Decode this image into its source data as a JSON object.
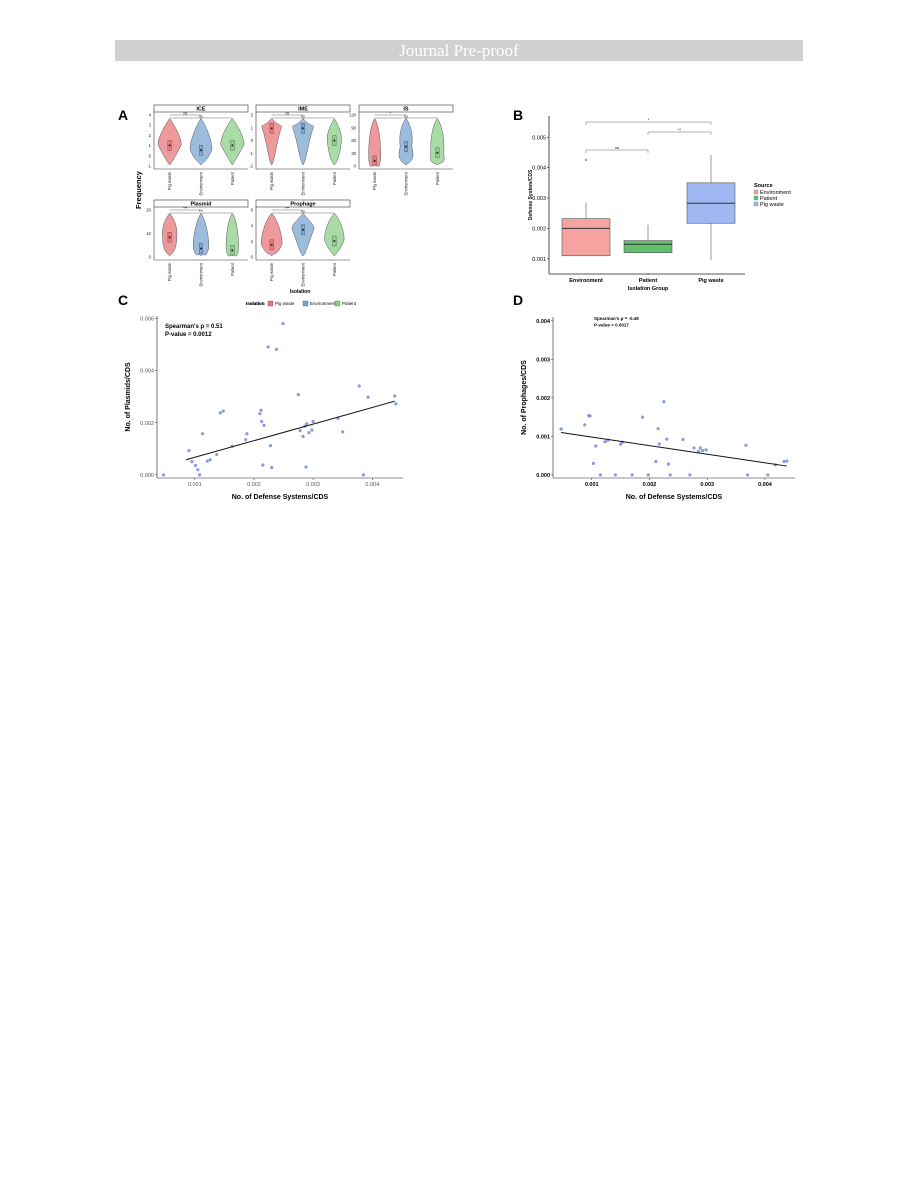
{
  "header": {
    "banner": "Journal Pre-proof"
  },
  "panels": {
    "a": "A",
    "b": "B",
    "c": "C",
    "d": "D"
  },
  "colors": {
    "pig": "#e8777a",
    "env": "#7aa6d2",
    "patient": "#8ccf8a",
    "box_env": "#f4a3a0",
    "box_patient": "#62bf6e",
    "box_pig": "#9fb8f2",
    "point": "#6b7fe0"
  },
  "chart_data": [
    {
      "type": "violin",
      "panel": "A",
      "ylabel": "Frequency",
      "xlabel": "Isolation",
      "categories": [
        "Pig waste",
        "Environment",
        "Patient"
      ],
      "facets": [
        {
          "title": "ICE",
          "yticks": [
            "4",
            "3",
            "2",
            "1",
            "0",
            "-1"
          ],
          "ylim": [
            -1,
            4
          ],
          "medians": [
            1.0,
            0.5,
            1.0
          ],
          "sig": [
            "ns",
            "ns"
          ]
        },
        {
          "title": "IME",
          "yticks": [
            "2",
            "1",
            "0",
            "-1",
            "-2"
          ],
          "ylim": [
            -2,
            2
          ],
          "medians": [
            1.0,
            1.0,
            0.0
          ],
          "sig": [
            "ns",
            "ns"
          ]
        },
        {
          "title": "IS",
          "yticks": [
            "120",
            "90",
            "60",
            "30",
            "0"
          ],
          "ylim": [
            0,
            120
          ],
          "medians": [
            10,
            45,
            30
          ],
          "sig": [
            "*",
            "ns"
          ]
        },
        {
          "title": "Plasmid",
          "yticks": [
            "20",
            "10",
            "0"
          ],
          "ylim": [
            -2,
            22
          ],
          "medians": [
            8,
            2,
            1
          ],
          "sig": [
            "***",
            "***"
          ]
        },
        {
          "title": "Prophage",
          "yticks": [
            "6",
            "4",
            "2",
            "0"
          ],
          "ylim": [
            0,
            6
          ],
          "medians": [
            1.5,
            3.5,
            2.0
          ],
          "sig": [
            "***",
            "ns"
          ]
        }
      ],
      "legend": {
        "title": "Isolation",
        "entries": [
          "Pig waste",
          "Environment",
          "Patient"
        ]
      }
    },
    {
      "type": "box",
      "panel": "B",
      "ylabel": "Defense System/CDS",
      "xlabel": "Isolation Group",
      "categories": [
        "Environment",
        "Patient",
        "Pig waste"
      ],
      "yticks": [
        "0.001",
        "0.002",
        "0.003",
        "0.004",
        "0.005"
      ],
      "ylim": [
        0.0005,
        0.0057
      ],
      "boxes": [
        {
          "q1": 0.0011,
          "median": 0.002,
          "q3": 0.00232,
          "low": 0.0011,
          "high": 0.00285,
          "outliers": [
            0.00425
          ]
        },
        {
          "q1": 0.0012,
          "median": 0.00148,
          "q3": 0.0016,
          "low": 0.0012,
          "high": 0.00212,
          "outliers": [
            0.0005
          ]
        },
        {
          "q1": 0.00217,
          "median": 0.00283,
          "q3": 0.0035,
          "low": 0.00095,
          "high": 0.00442,
          "outliers": []
        }
      ],
      "brackets": [
        {
          "from": 0,
          "to": 2,
          "label": "*"
        },
        {
          "from": 1,
          "to": 2,
          "label": "**"
        },
        {
          "from": 0,
          "to": 1,
          "label": "ns"
        }
      ],
      "legend": {
        "title": "Source",
        "entries": [
          "Environment",
          "Patient",
          "Pig waste"
        ]
      }
    },
    {
      "type": "scatter",
      "panel": "C",
      "xlabel": "No. of Defense Systems/CDS",
      "ylabel": "No. of Plasmids/CDS",
      "xticks": [
        "0.001",
        "0.002",
        "0.003",
        "0.004"
      ],
      "yticks": [
        "0.000",
        "0.002",
        "0.004",
        "0.006"
      ],
      "xlim": [
        0.00036,
        0.00452
      ],
      "ylim": [
        -0.00012,
        0.0061
      ],
      "annotation": [
        "Spearman's ρ = 0.51",
        "P-value = 0.0012"
      ],
      "legend": {
        "title": "Isolation",
        "entries": [
          "Pig waste",
          "Environment",
          "Patient"
        ]
      },
      "fit": [
        [
          0.00085,
          0.00058
        ],
        [
          0.00438,
          0.00283
        ]
      ],
      "points": [
        [
          0.00047,
          0.0
        ],
        [
          0.0009,
          0.00093
        ],
        [
          0.00095,
          0.00051
        ],
        [
          0.00101,
          0.00036
        ],
        [
          0.00105,
          0.0002
        ],
        [
          0.00108,
          0.0
        ],
        [
          0.00113,
          0.00158
        ],
        [
          0.00121,
          0.00053
        ],
        [
          0.00126,
          0.00058
        ],
        [
          0.00137,
          0.00078
        ],
        [
          0.00143,
          0.00238
        ],
        [
          0.00148,
          0.00245
        ],
        [
          0.00163,
          0.0011
        ],
        [
          0.00186,
          0.00135
        ],
        [
          0.00188,
          0.00158
        ],
        [
          0.0021,
          0.00235
        ],
        [
          0.00212,
          0.00248
        ],
        [
          0.00213,
          0.00205
        ],
        [
          0.00215,
          0.00038
        ],
        [
          0.00217,
          0.0019
        ],
        [
          0.00224,
          0.00491
        ],
        [
          0.00228,
          0.00112
        ],
        [
          0.0023,
          0.00028
        ],
        [
          0.00238,
          0.00482
        ],
        [
          0.00249,
          0.00581
        ],
        [
          0.00275,
          0.00308
        ],
        [
          0.00278,
          0.0017
        ],
        [
          0.00283,
          0.00148
        ],
        [
          0.00286,
          0.00187
        ],
        [
          0.00288,
          0.0003
        ],
        [
          0.00289,
          0.00196
        ],
        [
          0.00293,
          0.00162
        ],
        [
          0.00298,
          0.00172
        ],
        [
          0.003,
          0.00205
        ],
        [
          0.00342,
          0.00217
        ],
        [
          0.0035,
          0.00165
        ],
        [
          0.00378,
          0.00341
        ],
        [
          0.00385,
          0.0
        ],
        [
          0.00393,
          0.00298
        ],
        [
          0.00438,
          0.00303
        ],
        [
          0.0044,
          0.00273
        ]
      ]
    },
    {
      "type": "scatter",
      "panel": "D",
      "xlabel": "No. of Defense Systems/CDS",
      "ylabel": "No. of Prophages/CDS",
      "xticks": [
        "0.001",
        "0.002",
        "0.003",
        "0.004"
      ],
      "yticks": [
        "0.000",
        "0.001",
        "0.002",
        "0.003",
        "0.004"
      ],
      "xlim": [
        0.00033,
        0.00452
      ],
      "ylim": [
        -8e-05,
        0.0041
      ],
      "annotation": [
        "Spearman's ρ = -0.49",
        "P-value = 0.0017"
      ],
      "fit": [
        [
          0.00047,
          0.0011
        ],
        [
          0.00438,
          0.00023
        ]
      ],
      "points": [
        [
          0.00047,
          0.00119
        ],
        [
          0.00088,
          0.0013
        ],
        [
          0.00095,
          0.00154
        ],
        [
          0.00097,
          0.00153
        ],
        [
          0.00103,
          0.0003
        ],
        [
          0.00107,
          0.00075
        ],
        [
          0.00115,
          0.0
        ],
        [
          0.00123,
          0.00086
        ],
        [
          0.00128,
          0.0009
        ],
        [
          0.00141,
          0.0
        ],
        [
          0.0015,
          0.0008
        ],
        [
          0.00153,
          0.00085
        ],
        [
          0.0017,
          0.0
        ],
        [
          0.00188,
          0.0015
        ],
        [
          0.00198,
          0.0
        ],
        [
          0.00211,
          0.00035
        ],
        [
          0.00215,
          0.0012
        ],
        [
          0.00217,
          0.0008
        ],
        [
          0.00225,
          0.0019
        ],
        [
          0.0023,
          0.00093
        ],
        [
          0.00233,
          0.00028
        ],
        [
          0.00236,
          0.0
        ],
        [
          0.00258,
          0.00092
        ],
        [
          0.0027,
          0.0
        ],
        [
          0.00277,
          0.0007
        ],
        [
          0.00285,
          0.00061
        ],
        [
          0.00288,
          0.0007
        ],
        [
          0.00292,
          0.00063
        ],
        [
          0.00298,
          0.00065
        ],
        [
          0.00367,
          0.00077
        ],
        [
          0.0037,
          0.0
        ],
        [
          0.00405,
          0.0
        ],
        [
          0.00418,
          0.00026
        ],
        [
          0.00433,
          0.00035
        ],
        [
          0.00438,
          0.00036
        ]
      ]
    }
  ]
}
